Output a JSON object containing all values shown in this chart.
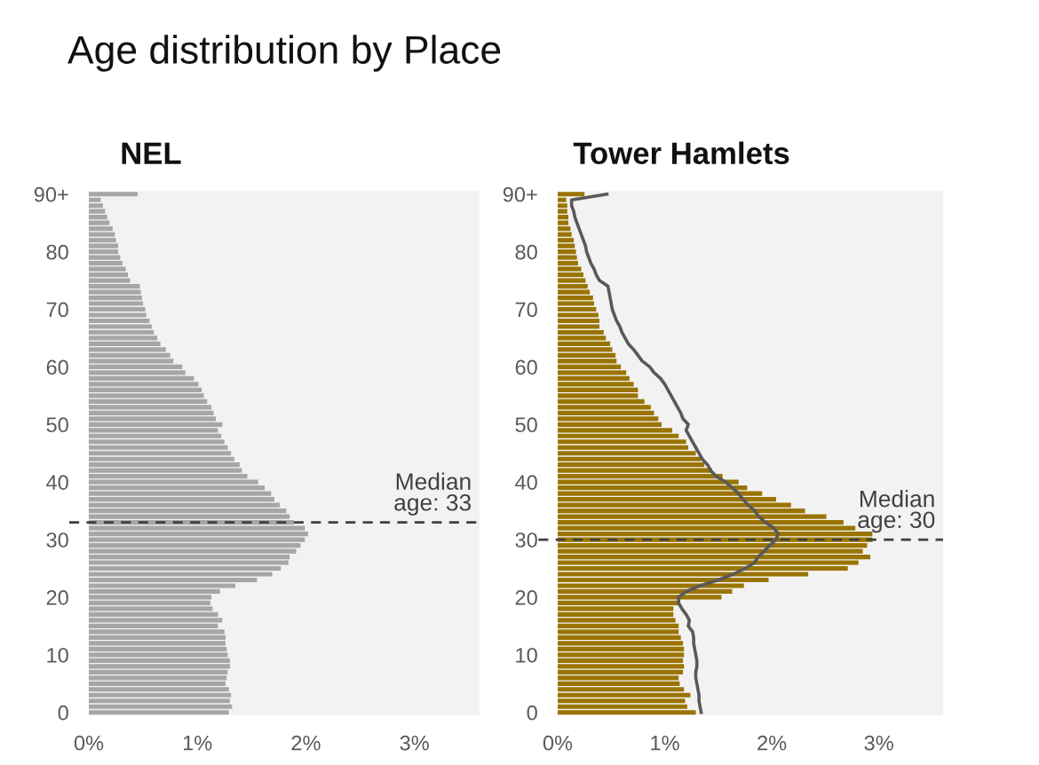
{
  "chart_data": [
    {
      "type": "bar",
      "orientation": "horizontal",
      "title": "Age distribution by Place",
      "subtitle": "NEL",
      "x": [
        0,
        1,
        2,
        3,
        4,
        5,
        6,
        7,
        8,
        9,
        10,
        11,
        12,
        13,
        14,
        15,
        16,
        17,
        18,
        19,
        20,
        21,
        22,
        23,
        24,
        25,
        26,
        27,
        28,
        29,
        30,
        31,
        32,
        33,
        34,
        35,
        36,
        37,
        38,
        39,
        40,
        41,
        42,
        43,
        44,
        45,
        46,
        47,
        48,
        49,
        50,
        51,
        52,
        53,
        54,
        55,
        56,
        57,
        58,
        59,
        60,
        61,
        62,
        63,
        64,
        65,
        66,
        67,
        68,
        69,
        70,
        71,
        72,
        73,
        74,
        75,
        76,
        77,
        78,
        79,
        80,
        81,
        82,
        83,
        84,
        85,
        86,
        87,
        88,
        89,
        90
      ],
      "series": [
        {
          "color": "#a6a6a6",
          "values": [
            1.29,
            1.32,
            1.3,
            1.31,
            1.29,
            1.26,
            1.27,
            1.28,
            1.3,
            1.3,
            1.28,
            1.27,
            1.26,
            1.26,
            1.25,
            1.19,
            1.23,
            1.19,
            1.14,
            1.12,
            1.13,
            1.21,
            1.35,
            1.55,
            1.69,
            1.77,
            1.84,
            1.85,
            1.91,
            1.95,
            1.99,
            2.02,
            1.99,
            1.89,
            1.85,
            1.82,
            1.76,
            1.71,
            1.68,
            1.62,
            1.56,
            1.46,
            1.41,
            1.39,
            1.34,
            1.31,
            1.28,
            1.25,
            1.22,
            1.19,
            1.23,
            1.17,
            1.15,
            1.13,
            1.09,
            1.06,
            1.04,
            1.01,
            0.97,
            0.89,
            0.86,
            0.78,
            0.75,
            0.71,
            0.66,
            0.63,
            0.6,
            0.58,
            0.56,
            0.53,
            0.52,
            0.5,
            0.49,
            0.48,
            0.47,
            0.38,
            0.36,
            0.34,
            0.31,
            0.29,
            0.27,
            0.27,
            0.25,
            0.24,
            0.22,
            0.19,
            0.17,
            0.15,
            0.13,
            0.11,
            0.45
          ]
        }
      ],
      "xlim": [
        0,
        3.6
      ],
      "xticks": [
        {
          "value": 0,
          "label": "0%"
        },
        {
          "value": 1,
          "label": "1%"
        },
        {
          "value": 2,
          "label": "2%"
        },
        {
          "value": 3,
          "label": "3%"
        }
      ],
      "ylim": [
        -0.5,
        90.5
      ],
      "yticks": [
        0,
        10,
        20,
        30,
        40,
        50,
        60,
        70,
        80,
        {
          "value": 90,
          "label": "90+"
        }
      ],
      "ref_lines": [
        {
          "axis": "y",
          "value": 33,
          "label": "Median\nage: 33",
          "color": "#404040",
          "line_style": "dashed"
        }
      ]
    },
    {
      "type": "bar",
      "orientation": "horizontal",
      "subtitle": "Tower Hamlets",
      "x": [
        0,
        1,
        2,
        3,
        4,
        5,
        6,
        7,
        8,
        9,
        10,
        11,
        12,
        13,
        14,
        15,
        16,
        17,
        18,
        19,
        20,
        21,
        22,
        23,
        24,
        25,
        26,
        27,
        28,
        29,
        30,
        31,
        32,
        33,
        34,
        35,
        36,
        37,
        38,
        39,
        40,
        41,
        42,
        43,
        44,
        45,
        46,
        47,
        48,
        49,
        50,
        51,
        52,
        53,
        54,
        55,
        56,
        57,
        58,
        59,
        60,
        61,
        62,
        63,
        64,
        65,
        66,
        67,
        68,
        69,
        70,
        71,
        72,
        73,
        74,
        75,
        76,
        77,
        78,
        79,
        80,
        81,
        82,
        83,
        84,
        85,
        86,
        87,
        88,
        89,
        90
      ],
      "series": [
        {
          "color": "#9a7400",
          "values": [
            1.29,
            1.21,
            1.19,
            1.24,
            1.18,
            1.14,
            1.13,
            1.17,
            1.18,
            1.17,
            1.18,
            1.18,
            1.17,
            1.15,
            1.13,
            1.13,
            1.1,
            1.08,
            1.08,
            1.14,
            1.53,
            1.63,
            1.74,
            1.97,
            2.34,
            2.71,
            2.81,
            2.92,
            2.85,
            2.89,
            2.94,
            2.94,
            2.78,
            2.67,
            2.51,
            2.31,
            2.18,
            2.04,
            1.91,
            1.77,
            1.69,
            1.54,
            1.44,
            1.37,
            1.34,
            1.29,
            1.22,
            1.2,
            1.13,
            1.07,
            0.97,
            0.94,
            0.9,
            0.87,
            0.81,
            0.75,
            0.75,
            0.71,
            0.67,
            0.64,
            0.59,
            0.55,
            0.54,
            0.51,
            0.49,
            0.45,
            0.43,
            0.39,
            0.39,
            0.38,
            0.36,
            0.34,
            0.33,
            0.3,
            0.28,
            0.26,
            0.24,
            0.22,
            0.19,
            0.18,
            0.17,
            0.16,
            0.15,
            0.13,
            0.12,
            0.1,
            0.1,
            0.09,
            0.09,
            0.08,
            0.25
          ]
        },
        {
          "type": "line",
          "color": "#595959",
          "values": [
            1.34,
            1.33,
            1.32,
            1.32,
            1.31,
            1.3,
            1.29,
            1.29,
            1.3,
            1.3,
            1.29,
            1.28,
            1.27,
            1.27,
            1.26,
            1.22,
            1.23,
            1.2,
            1.16,
            1.13,
            1.13,
            1.2,
            1.33,
            1.5,
            1.64,
            1.75,
            1.84,
            1.87,
            1.93,
            1.98,
            2.04,
            2.06,
            2.02,
            1.94,
            1.88,
            1.84,
            1.78,
            1.73,
            1.69,
            1.63,
            1.57,
            1.48,
            1.43,
            1.4,
            1.35,
            1.32,
            1.29,
            1.26,
            1.23,
            1.2,
            1.22,
            1.17,
            1.15,
            1.12,
            1.09,
            1.06,
            1.03,
            1.0,
            0.96,
            0.9,
            0.86,
            0.79,
            0.75,
            0.71,
            0.66,
            0.63,
            0.6,
            0.58,
            0.55,
            0.53,
            0.51,
            0.5,
            0.49,
            0.48,
            0.47,
            0.39,
            0.36,
            0.34,
            0.31,
            0.29,
            0.27,
            0.26,
            0.24,
            0.22,
            0.2,
            0.18,
            0.16,
            0.15,
            0.13,
            0.13,
            0.46
          ]
        }
      ],
      "xlim": [
        0,
        3.6
      ],
      "xticks": [
        {
          "value": 0,
          "label": "0%"
        },
        {
          "value": 1,
          "label": "1%"
        },
        {
          "value": 2,
          "label": "2%"
        },
        {
          "value": 3,
          "label": "3%"
        }
      ],
      "ylim": [
        -0.5,
        90.5
      ],
      "yticks": [
        0,
        10,
        20,
        30,
        40,
        50,
        60,
        70,
        80,
        {
          "value": 90,
          "label": "90+"
        }
      ],
      "ref_lines": [
        {
          "axis": "y",
          "value": 30,
          "label": "Median\nage: 30",
          "color": "#404040",
          "line_style": "dashed"
        }
      ]
    }
  ]
}
